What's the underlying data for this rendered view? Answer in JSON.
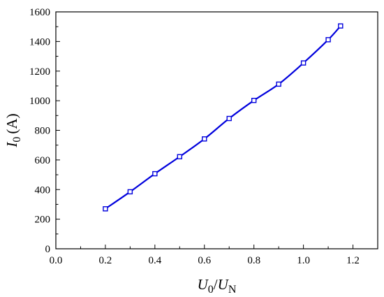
{
  "chart_data": {
    "type": "line",
    "title": "",
    "xlabel": {
      "var": "U",
      "sub": "0",
      "sep": "/",
      "var2": "U",
      "sub2": "N"
    },
    "ylabel": {
      "var": "I",
      "sub": "0",
      "unit": "(A)"
    },
    "xlim": [
      0.0,
      1.3
    ],
    "ylim": [
      0,
      1600
    ],
    "xticks": [
      "0.0",
      "0.2",
      "0.4",
      "0.6",
      "0.8",
      "1.0",
      "1.2"
    ],
    "yticks": [
      "0",
      "200",
      "400",
      "600",
      "800",
      "1000",
      "1200",
      "1400",
      "1600"
    ],
    "grid": false,
    "legend": "none",
    "series": [
      {
        "color": "#0000dd",
        "marker": "square-open",
        "x": [
          0.2,
          0.3,
          0.4,
          0.5,
          0.6,
          0.7,
          0.8,
          0.9,
          1.0,
          1.1,
          1.15
        ],
        "y": [
          270,
          385,
          507,
          622,
          742,
          880,
          1002,
          1112,
          1255,
          1412,
          1505
        ]
      }
    ]
  }
}
